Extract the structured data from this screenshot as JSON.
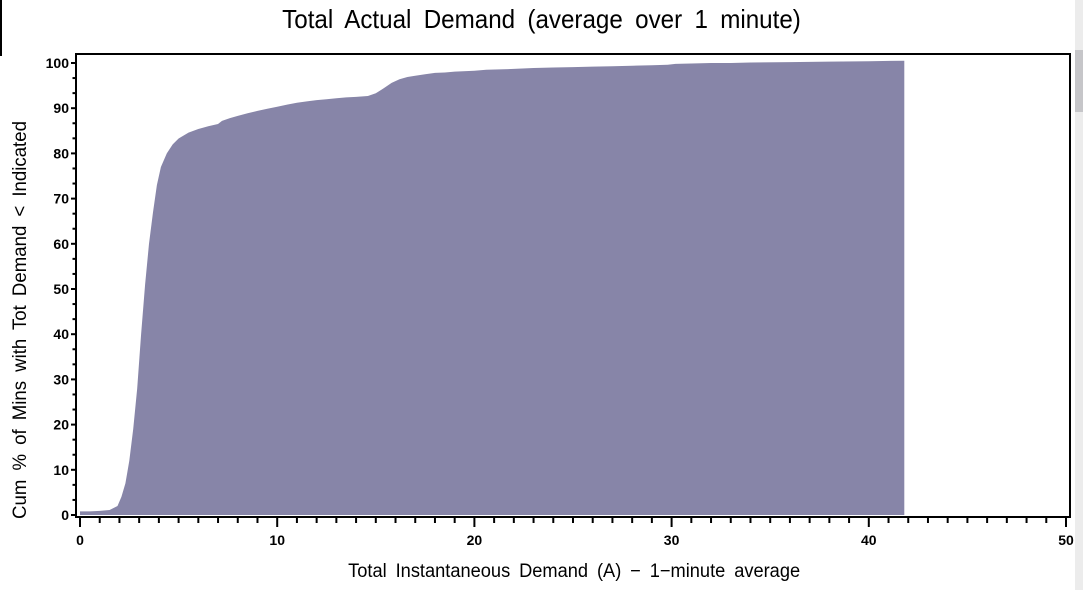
{
  "page": {
    "background": "#ffffff"
  },
  "chart_data": {
    "type": "area",
    "title": "Total Actual Demand (average over 1 minute)",
    "xlabel": "Total Instantaneous Demand (A) − 1−minute average",
    "ylabel": "Cum % of Mins with Tot Demand < Indicated",
    "xlim": [
      0,
      50
    ],
    "ylim": [
      0,
      100
    ],
    "x_ticks": [
      0,
      10,
      20,
      30,
      40,
      50
    ],
    "x_tick_labels": [
      "0",
      "10",
      "20",
      "30",
      "40",
      "50"
    ],
    "x_minor_step": 1,
    "y_ticks": [
      0,
      10,
      20,
      30,
      40,
      50,
      60,
      70,
      80,
      90,
      100
    ],
    "y_tick_labels": [
      "0",
      "10",
      "20",
      "30",
      "40",
      "50",
      "60",
      "70",
      "80",
      "90",
      "100"
    ],
    "y_minor_per_major": 2,
    "grid": false,
    "legend": null,
    "fill_color": "#8785A8",
    "frame_color": "#000000",
    "data_x_max": 41.8,
    "points": [
      [
        0,
        0.8
      ],
      [
        0.5,
        0.8
      ],
      [
        1.0,
        0.9
      ],
      [
        1.5,
        1.1
      ],
      [
        1.9,
        2
      ],
      [
        2.1,
        4
      ],
      [
        2.3,
        7
      ],
      [
        2.5,
        12
      ],
      [
        2.7,
        19
      ],
      [
        2.9,
        28
      ],
      [
        3.1,
        40
      ],
      [
        3.3,
        51
      ],
      [
        3.5,
        60
      ],
      [
        3.7,
        67
      ],
      [
        3.9,
        73
      ],
      [
        4.1,
        77
      ],
      [
        4.4,
        80
      ],
      [
        4.7,
        82
      ],
      [
        5.0,
        83.3
      ],
      [
        5.5,
        84.6
      ],
      [
        6.0,
        85.4
      ],
      [
        6.5,
        86.0
      ],
      [
        7.0,
        86.5
      ],
      [
        7.2,
        87.2
      ],
      [
        7.6,
        87.8
      ],
      [
        8.0,
        88.3
      ],
      [
        8.5,
        88.9
      ],
      [
        9.0,
        89.4
      ],
      [
        9.5,
        89.9
      ],
      [
        10.0,
        90.3
      ],
      [
        10.5,
        90.8
      ],
      [
        11.0,
        91.2
      ],
      [
        11.5,
        91.5
      ],
      [
        12.0,
        91.8
      ],
      [
        12.5,
        92.0
      ],
      [
        13.0,
        92.2
      ],
      [
        13.5,
        92.4
      ],
      [
        14.0,
        92.5
      ],
      [
        14.6,
        92.7
      ],
      [
        15.0,
        93.3
      ],
      [
        15.4,
        94.4
      ],
      [
        15.8,
        95.6
      ],
      [
        16.2,
        96.4
      ],
      [
        16.6,
        96.9
      ],
      [
        17.0,
        97.2
      ],
      [
        17.5,
        97.5
      ],
      [
        18.0,
        97.8
      ],
      [
        18.5,
        97.9
      ],
      [
        19.0,
        98.1
      ],
      [
        20.0,
        98.3
      ],
      [
        20.6,
        98.5
      ],
      [
        21.5,
        98.6
      ],
      [
        22.0,
        98.7
      ],
      [
        23.0,
        98.9
      ],
      [
        24.0,
        99.0
      ],
      [
        25.0,
        99.1
      ],
      [
        26.0,
        99.2
      ],
      [
        27.0,
        99.3
      ],
      [
        28.0,
        99.4
      ],
      [
        29.0,
        99.5
      ],
      [
        29.8,
        99.6
      ],
      [
        30.2,
        99.8
      ],
      [
        31.0,
        99.9
      ],
      [
        32.0,
        100.0
      ],
      [
        33.0,
        100.0
      ],
      [
        34.0,
        100.1
      ],
      [
        36.0,
        100.2
      ],
      [
        38.0,
        100.3
      ],
      [
        40.0,
        100.4
      ],
      [
        41.8,
        100.5
      ]
    ]
  },
  "ui": {
    "scrollbar_track_color": "#ececec",
    "scrollbar_thumb_color": "#c6c6c9",
    "edge_line_color": "#000000"
  }
}
